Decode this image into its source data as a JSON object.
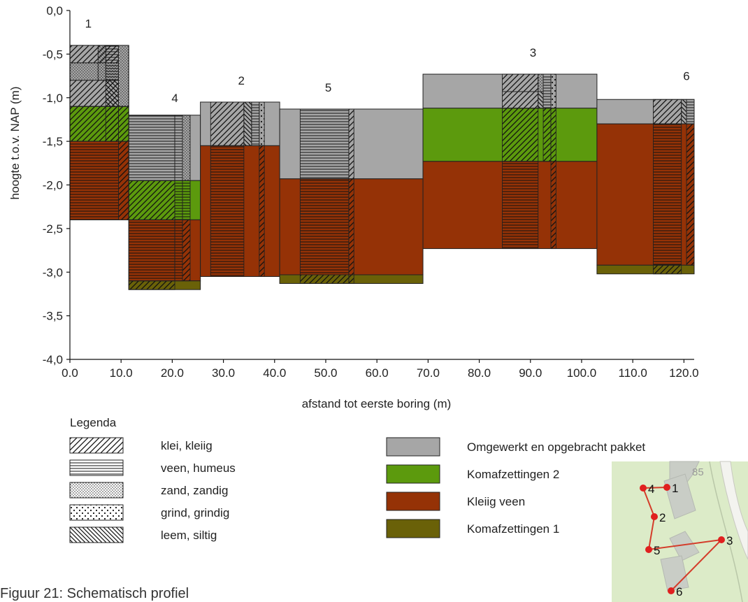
{
  "chart_data": {
    "type": "stratigraphic-profile",
    "xlabel": "afstand tot eerste boring (m)",
    "ylabel": "hoogte t.o.v. NAP (m)",
    "xlim": [
      0,
      122
    ],
    "ylim": [
      -4.0,
      0.0
    ],
    "xticks": [
      "0.0",
      "10.0",
      "20.0",
      "30.0",
      "40.0",
      "50.0",
      "60.0",
      "70.0",
      "80.0",
      "90.0",
      "100.0",
      "110.0",
      "120.0"
    ],
    "xtick_values": [
      0,
      10,
      20,
      30,
      40,
      50,
      60,
      70,
      80,
      90,
      100,
      110,
      120
    ],
    "yticks": [
      "0,0",
      "-0,5",
      "-1,0",
      "-1,5",
      "-2,0",
      "-2,5",
      "-3,0",
      "-3,5",
      "-4,0"
    ],
    "ytick_values": [
      0,
      -0.5,
      -1.0,
      -1.5,
      -2.0,
      -2.5,
      -3.0,
      -3.5,
      -4.0
    ],
    "units": [
      {
        "x0": 0,
        "x1": 11.5,
        "top": -0.4,
        "bottom": -1.1,
        "unit": "grey"
      },
      {
        "x0": 0,
        "x1": 11.5,
        "top": -1.1,
        "bottom": -1.5,
        "unit": "green"
      },
      {
        "x0": 0,
        "x1": 11.5,
        "top": -1.5,
        "bottom": -2.4,
        "unit": "brown"
      },
      {
        "x0": 11.5,
        "x1": 25.5,
        "top": -1.2,
        "bottom": -1.95,
        "unit": "grey"
      },
      {
        "x0": 11.5,
        "x1": 25.5,
        "top": -1.95,
        "bottom": -2.4,
        "unit": "green"
      },
      {
        "x0": 11.5,
        "x1": 25.5,
        "top": -2.4,
        "bottom": -3.1,
        "unit": "brown"
      },
      {
        "x0": 11.5,
        "x1": 25.5,
        "top": -3.1,
        "bottom": -3.2,
        "unit": "olive"
      },
      {
        "x0": 25.5,
        "x1": 41.0,
        "top": -1.05,
        "bottom": -1.55,
        "unit": "grey"
      },
      {
        "x0": 25.5,
        "x1": 41.0,
        "top": -1.55,
        "bottom": -3.05,
        "unit": "brown"
      },
      {
        "x0": 41.0,
        "x1": 69.0,
        "top": -1.13,
        "bottom": -1.93,
        "unit": "grey"
      },
      {
        "x0": 41.0,
        "x1": 69.0,
        "top": -1.93,
        "bottom": -3.03,
        "unit": "brown"
      },
      {
        "x0": 41.0,
        "x1": 69.0,
        "top": -3.03,
        "bottom": -3.13,
        "unit": "olive"
      },
      {
        "x0": 69.0,
        "x1": 103.0,
        "top": -0.73,
        "bottom": -1.12,
        "unit": "grey"
      },
      {
        "x0": 69.0,
        "x1": 103.0,
        "top": -1.12,
        "bottom": -1.73,
        "unit": "green"
      },
      {
        "x0": 69.0,
        "x1": 103.0,
        "top": -1.73,
        "bottom": -2.73,
        "unit": "brown"
      },
      {
        "x0": 103.0,
        "x1": 122.0,
        "top": -1.02,
        "bottom": -1.3,
        "unit": "grey"
      },
      {
        "x0": 103.0,
        "x1": 122.0,
        "top": -1.3,
        "bottom": -2.92,
        "unit": "brown"
      },
      {
        "x0": 103.0,
        "x1": 122.0,
        "top": -2.92,
        "bottom": -3.02,
        "unit": "olive"
      }
    ],
    "borings": [
      {
        "label": "1",
        "x0": 0,
        "x1": 9.5,
        "label_x": 3.6,
        "label_y": -0.15,
        "cols": [
          {
            "x0": 0,
            "x1": 9.5,
            "layers": [
              {
                "top": -0.4,
                "bottom": -0.6,
                "pattern": "klei"
              },
              {
                "top": -0.6,
                "bottom": -0.8,
                "pattern": "zand"
              },
              {
                "top": -0.8,
                "bottom": -1.1,
                "pattern": "klei"
              },
              {
                "top": -1.1,
                "bottom": -1.5,
                "pattern": "klei"
              },
              {
                "top": -1.5,
                "bottom": -2.4,
                "pattern": "veen"
              }
            ]
          },
          {
            "x0": 5.5,
            "x1": 7.0,
            "layers": [
              {
                "top": -0.4,
                "bottom": -0.8,
                "pattern": "zand"
              }
            ]
          },
          {
            "x0": 7.0,
            "x1": 9.5,
            "layers": [
              {
                "top": -0.4,
                "bottom": -0.8,
                "pattern": "veen"
              },
              {
                "top": -0.8,
                "bottom": -1.1,
                "pattern": "leem"
              },
              {
                "top": -1.1,
                "bottom": -1.5,
                "pattern": "klei"
              }
            ]
          },
          {
            "x0": 9.5,
            "x1": 11.5,
            "layers": [
              {
                "top": -0.4,
                "bottom": -1.1,
                "pattern": "zand"
              },
              {
                "top": -1.1,
                "bottom": -1.5,
                "pattern": "klei"
              },
              {
                "top": -1.5,
                "bottom": -2.4,
                "pattern": "klei"
              }
            ]
          }
        ]
      },
      {
        "label": "4",
        "x0": 11.5,
        "x1": 23.5,
        "label_x": 20.5,
        "label_y": -1.0,
        "cols": [
          {
            "x0": 11.5,
            "x1": 20.5,
            "layers": [
              {
                "top": -1.2,
                "bottom": -1.95,
                "pattern": "veen"
              },
              {
                "top": -1.95,
                "bottom": -2.4,
                "pattern": "klei"
              },
              {
                "top": -2.4,
                "bottom": -3.1,
                "pattern": "veen"
              },
              {
                "top": -3.1,
                "bottom": -3.2,
                "pattern": "klei"
              }
            ]
          },
          {
            "x0": 20.5,
            "x1": 22.0,
            "layers": [
              {
                "top": -1.2,
                "bottom": -1.95,
                "pattern": "veen"
              },
              {
                "top": -1.95,
                "bottom": -2.4,
                "pattern": "veen"
              },
              {
                "top": -2.4,
                "bottom": -3.1,
                "pattern": "veen"
              }
            ]
          },
          {
            "x0": 22.0,
            "x1": 23.5,
            "layers": [
              {
                "top": -1.2,
                "bottom": -1.95,
                "pattern": "zand"
              },
              {
                "top": -1.95,
                "bottom": -2.4,
                "pattern": "veen"
              },
              {
                "top": -2.4,
                "bottom": -3.1,
                "pattern": "klei"
              }
            ]
          }
        ]
      },
      {
        "label": "2",
        "x0": 27.5,
        "x1": 38.0,
        "label_x": 33.5,
        "label_y": -0.8,
        "cols": [
          {
            "x0": 27.5,
            "x1": 34.0,
            "layers": [
              {
                "top": -1.05,
                "bottom": -1.55,
                "pattern": "klei"
              },
              {
                "top": -1.55,
                "bottom": -3.05,
                "pattern": "veen"
              }
            ]
          },
          {
            "x0": 34.0,
            "x1": 35.5,
            "layers": [
              {
                "top": -1.05,
                "bottom": -1.55,
                "pattern": "leem"
              }
            ]
          },
          {
            "x0": 35.5,
            "x1": 37.0,
            "layers": [
              {
                "top": -1.05,
                "bottom": -1.55,
                "pattern": "veen"
              }
            ]
          },
          {
            "x0": 37.0,
            "x1": 38.0,
            "layers": [
              {
                "top": -1.05,
                "bottom": -1.55,
                "pattern": "grind"
              },
              {
                "top": -1.55,
                "bottom": -3.05,
                "pattern": "klei"
              }
            ]
          }
        ]
      },
      {
        "label": "5",
        "x0": 45.0,
        "x1": 55.5,
        "label_x": 50.5,
        "label_y": -0.88,
        "cols": [
          {
            "x0": 45.0,
            "x1": 54.5,
            "layers": [
              {
                "top": -1.13,
                "bottom": -1.93,
                "pattern": "veen"
              },
              {
                "top": -1.93,
                "bottom": -2.33,
                "pattern": "veen"
              },
              {
                "top": -2.33,
                "bottom": -3.03,
                "pattern": "veen"
              },
              {
                "top": -3.03,
                "bottom": -3.13,
                "pattern": "klei"
              }
            ]
          },
          {
            "x0": 54.5,
            "x1": 55.5,
            "layers": [
              {
                "top": -1.13,
                "bottom": -1.93,
                "pattern": "klei"
              },
              {
                "top": -1.93,
                "bottom": -3.03,
                "pattern": "klei"
              },
              {
                "top": -3.03,
                "bottom": -3.13,
                "pattern": "klei"
              }
            ]
          }
        ]
      },
      {
        "label": "3",
        "x0": 84.5,
        "x1": 95.0,
        "label_x": 90.5,
        "label_y": -0.48,
        "cols": [
          {
            "x0": 84.5,
            "x1": 91.5,
            "layers": [
              {
                "top": -0.73,
                "bottom": -0.93,
                "pattern": "klei"
              },
              {
                "top": -0.93,
                "bottom": -1.12,
                "pattern": "klei"
              },
              {
                "top": -1.12,
                "bottom": -1.73,
                "pattern": "klei"
              },
              {
                "top": -1.73,
                "bottom": -2.73,
                "pattern": "veen"
              }
            ]
          },
          {
            "x0": 91.5,
            "x1": 92.5,
            "layers": [
              {
                "top": -0.73,
                "bottom": -0.93,
                "pattern": "zand"
              },
              {
                "top": -0.93,
                "bottom": -1.12,
                "pattern": "leem"
              }
            ]
          },
          {
            "x0": 92.5,
            "x1": 94.0,
            "layers": [
              {
                "top": -0.73,
                "bottom": -1.12,
                "pattern": "veen"
              },
              {
                "top": -1.12,
                "bottom": -1.73,
                "pattern": "klei"
              }
            ]
          },
          {
            "x0": 94.0,
            "x1": 95.0,
            "layers": [
              {
                "top": -0.73,
                "bottom": -1.12,
                "pattern": "grind"
              },
              {
                "top": -1.12,
                "bottom": -2.73,
                "pattern": "klei"
              }
            ]
          }
        ]
      },
      {
        "label": "6",
        "x0": 114.0,
        "x1": 122.0,
        "label_x": 120.5,
        "label_y": -0.75,
        "cols": [
          {
            "x0": 114.0,
            "x1": 119.5,
            "layers": [
              {
                "top": -1.02,
                "bottom": -1.3,
                "pattern": "klei"
              },
              {
                "top": -1.3,
                "bottom": -2.92,
                "pattern": "veen"
              },
              {
                "top": -2.92,
                "bottom": -3.02,
                "pattern": "klei"
              }
            ]
          },
          {
            "x0": 119.5,
            "x1": 120.5,
            "layers": [
              {
                "top": -1.02,
                "bottom": -1.3,
                "pattern": "leem"
              }
            ]
          },
          {
            "x0": 120.5,
            "x1": 122.0,
            "layers": [
              {
                "top": -1.02,
                "bottom": -1.3,
                "pattern": "veen"
              },
              {
                "top": -1.3,
                "bottom": -2.92,
                "pattern": "klei"
              }
            ]
          }
        ]
      }
    ],
    "legend_title": "Legenda",
    "legend_patterns": [
      {
        "pattern": "klei",
        "label": "klei, kleiig"
      },
      {
        "pattern": "veen",
        "label": "veen, humeus"
      },
      {
        "pattern": "zand",
        "label": "zand, zandig"
      },
      {
        "pattern": "grind",
        "label": "grind, grindig"
      },
      {
        "pattern": "leem",
        "label": "leem, siltig"
      }
    ],
    "legend_units": [
      {
        "unit": "grey",
        "label": "Omgewerkt en opgebracht pakket"
      },
      {
        "unit": "green",
        "label": "Komafzettingen 2"
      },
      {
        "unit": "brown",
        "label": "Kleiig veen"
      },
      {
        "unit": "olive",
        "label": "Komafzettingen 1"
      }
    ],
    "unit_colors": {
      "grey": "#a6a6a6",
      "green": "#5c9a0d",
      "brown": "#953206",
      "olive": "#6a6108"
    },
    "map": {
      "number": "85",
      "points": [
        {
          "label": "1"
        },
        {
          "label": "4"
        },
        {
          "label": "2"
        },
        {
          "label": "5"
        },
        {
          "label": "3"
        },
        {
          "label": "6"
        }
      ],
      "point_color": "#e0201f",
      "line_color": "#d43c2a",
      "background": "#dcebc8"
    }
  },
  "caption": "Figuur 21: Schematisch profiel"
}
